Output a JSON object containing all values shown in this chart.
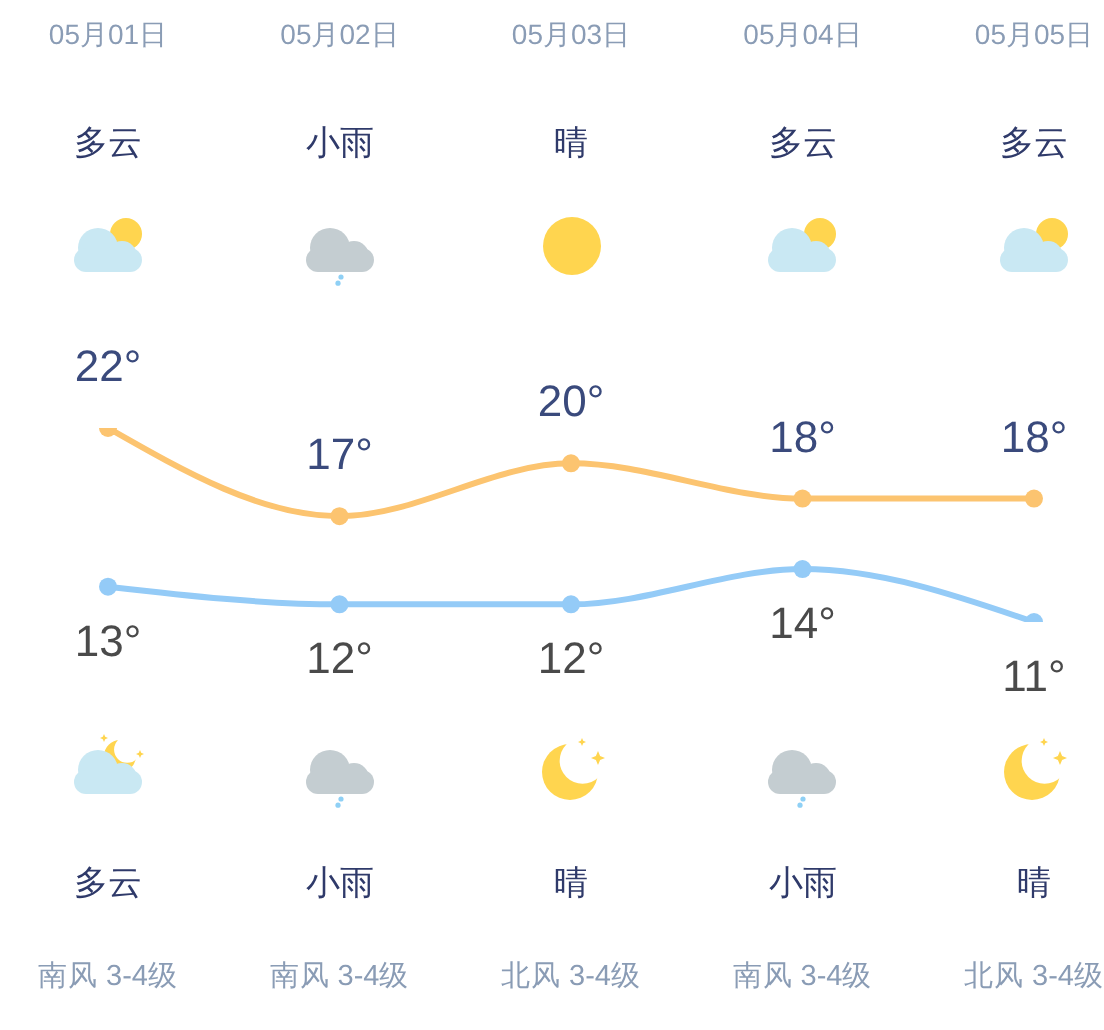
{
  "chart_data": {
    "type": "line",
    "categories": [
      "05月01日",
      "05月02日",
      "05月03日",
      "05月04日",
      "05月05日"
    ],
    "series": [
      {
        "color": "#fcc470",
        "values": [
          22,
          17,
          20,
          18,
          18
        ],
        "value_labels": [
          "22°",
          "17°",
          "20°",
          "18°",
          "18°"
        ]
      },
      {
        "color": "#94cbf7",
        "values": [
          13,
          12,
          12,
          14,
          11
        ],
        "value_labels": [
          "13°",
          "12°",
          "12°",
          "14°",
          "11°"
        ]
      }
    ],
    "marker": "circle",
    "annotations": [
      "多云",
      "小雨",
      "晴",
      "多云",
      "多云",
      "多云",
      "小雨",
      "晴",
      "小雨",
      "晴",
      "南风 3-4级",
      "南风 3-4级",
      "北风 3-4级",
      "南风 3-4级",
      "北风 3-4级"
    ]
  }
}
